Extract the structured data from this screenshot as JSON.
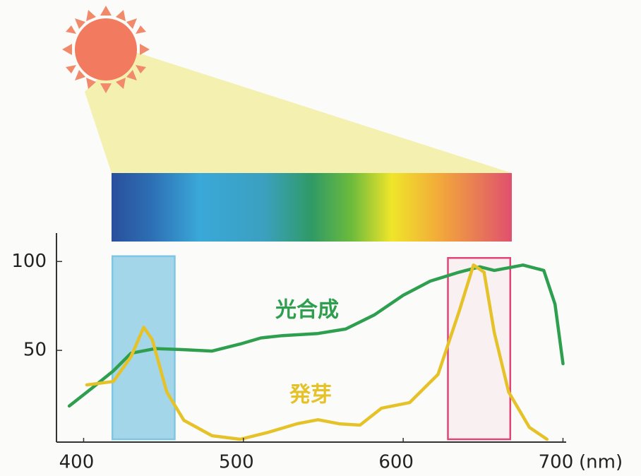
{
  "chart_data": {
    "type": "line",
    "xlim": [
      383,
      702
    ],
    "xticks": [
      400,
      500,
      600,
      700
    ],
    "ylim": [
      0,
      116
    ],
    "yticks": [
      50,
      100
    ],
    "x_label": "(nm)",
    "series": [
      {
        "name": "光合成",
        "color": "#2e9e4f",
        "x": [
          391,
          405,
          418.6,
          429.6,
          445,
          462.7,
          480.4,
          498,
          511,
          524.6,
          546.7,
          564,
          582,
          600,
          617,
          635,
          648,
          657,
          675,
          688,
          695,
          700
        ],
        "values": [
          18.7,
          28.6,
          38.5,
          48.4,
          51,
          50.4,
          49.6,
          53.6,
          57,
          58.3,
          59.5,
          62,
          70,
          81,
          89,
          94,
          97,
          95,
          98,
          95,
          76,
          42.5
        ]
      },
      {
        "name": "発芽",
        "color": "#e6c229",
        "x": [
          402,
          418.6,
          429.6,
          437.6,
          443,
          452,
          462.7,
          480.4,
          498,
          516,
          533.5,
          546.7,
          560,
          573,
          586.5,
          604,
          621.8,
          635,
          644,
          650.6,
          657,
          666,
          679,
          690
        ],
        "values": [
          30.6,
          32.5,
          46.4,
          63,
          56,
          26.6,
          10.7,
          2,
          0,
          4,
          8.7,
          11,
          8.7,
          8,
          17.5,
          20.6,
          36.5,
          72,
          98,
          94,
          60,
          26.6,
          6.7,
          0
        ]
      }
    ],
    "highlights": [
      {
        "x": [
          418,
          457
        ],
        "y": [
          0,
          103
        ],
        "color": "#7fc6e4"
      },
      {
        "x": [
          628,
          667
        ],
        "y": [
          0,
          102
        ],
        "color": "#e0457a"
      }
    ]
  }
}
